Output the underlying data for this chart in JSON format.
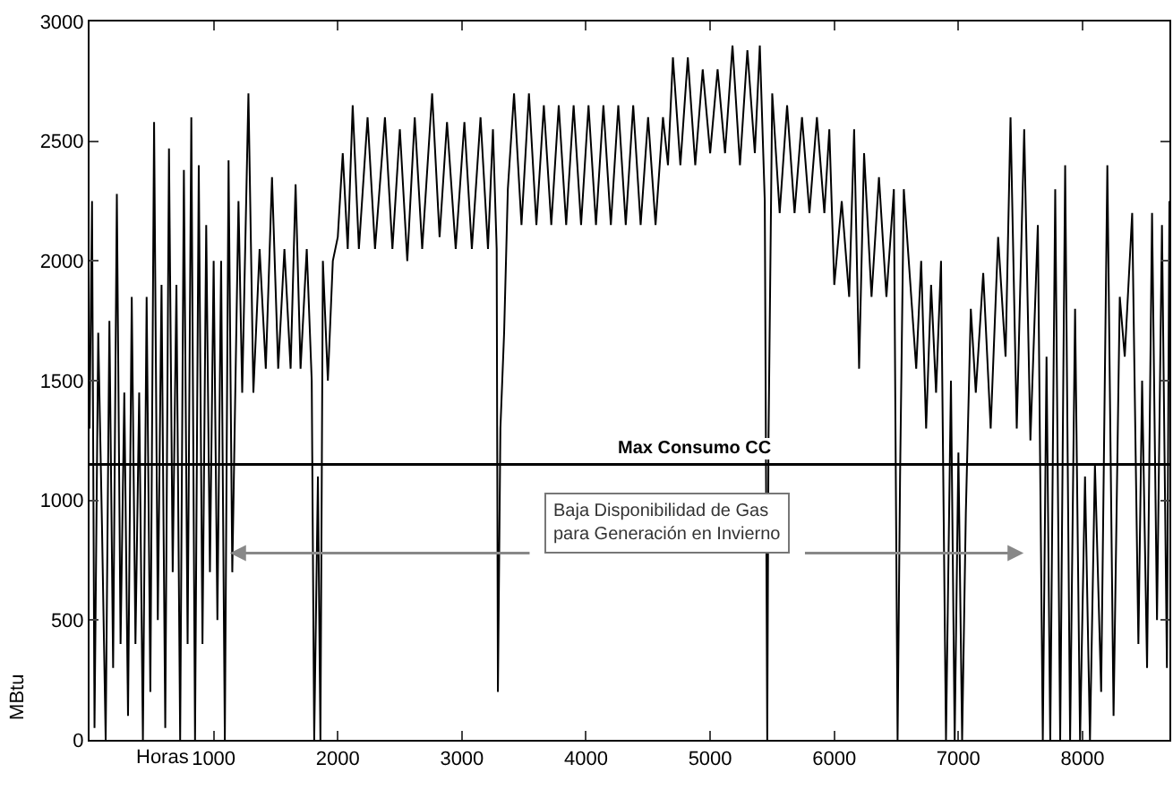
{
  "chart_data": {
    "type": "line",
    "xlabel": "Horas",
    "ylabel": "MBtu",
    "xlim": [
      0,
      8700
    ],
    "xticks": [
      1000,
      2000,
      3000,
      4000,
      5000,
      6000,
      7000,
      8000
    ],
    "ylim": [
      0,
      3000
    ],
    "yticks": [
      0,
      500,
      1000,
      1500,
      2000,
      2500,
      3000
    ],
    "marker": "none",
    "line_style": "solid",
    "ref_lines": [
      {
        "axis": "y",
        "value": 1150,
        "label": "Max Consumo CC",
        "color": "#000000"
      }
    ],
    "annotations": [
      "Baja Disponibilidad de Gas\npara Generación en Invierno"
    ],
    "series": [
      {
        "color": "#000000",
        "x": [
          0,
          20,
          40,
          70,
          100,
          130,
          160,
          190,
          220,
          250,
          280,
          310,
          340,
          370,
          400,
          430,
          460,
          490,
          520,
          550,
          580,
          610,
          640,
          670,
          700,
          730,
          760,
          790,
          820,
          850,
          880,
          910,
          940,
          970,
          1000,
          1030,
          1060,
          1090,
          1120,
          1150,
          1200,
          1230,
          1280,
          1320,
          1370,
          1420,
          1470,
          1520,
          1570,
          1620,
          1660,
          1700,
          1750,
          1790,
          1810,
          1840,
          1860,
          1880,
          1920,
          1960,
          2000,
          2040,
          2080,
          2120,
          2170,
          2240,
          2300,
          2380,
          2440,
          2500,
          2560,
          2620,
          2680,
          2760,
          2820,
          2880,
          2950,
          3020,
          3080,
          3150,
          3210,
          3250,
          3280,
          3290,
          3310,
          3340,
          3370,
          3420,
          3480,
          3540,
          3600,
          3660,
          3720,
          3780,
          3840,
          3900,
          3960,
          4020,
          4080,
          4140,
          4200,
          4260,
          4320,
          4380,
          4440,
          4500,
          4560,
          4620,
          4660,
          4700,
          4760,
          4820,
          4880,
          4940,
          5000,
          5060,
          5120,
          5180,
          5240,
          5300,
          5360,
          5400,
          5440,
          5460,
          5470,
          5500,
          5560,
          5620,
          5680,
          5740,
          5800,
          5860,
          5920,
          5960,
          6000,
          6060,
          6120,
          6160,
          6200,
          6240,
          6300,
          6360,
          6420,
          6480,
          6510,
          6530,
          6560,
          6620,
          6660,
          6700,
          6740,
          6780,
          6820,
          6860,
          6900,
          6940,
          6970,
          7000,
          7030,
          7060,
          7100,
          7140,
          7200,
          7260,
          7320,
          7380,
          7420,
          7470,
          7530,
          7580,
          7640,
          7680,
          7710,
          7740,
          7780,
          7820,
          7860,
          7900,
          7940,
          7980,
          8020,
          8060,
          8100,
          8150,
          8200,
          8250,
          8300,
          8340,
          8400,
          8450,
          8480,
          8520,
          8560,
          8600,
          8640,
          8680,
          8700
        ],
        "values": [
          1300,
          2250,
          50,
          1700,
          900,
          0,
          1750,
          300,
          2280,
          400,
          1450,
          100,
          1850,
          400,
          1450,
          0,
          1850,
          200,
          2580,
          500,
          1900,
          50,
          2470,
          700,
          1900,
          0,
          2380,
          400,
          2600,
          0,
          2400,
          400,
          2150,
          700,
          2000,
          500,
          2000,
          0,
          2420,
          700,
          2250,
          1450,
          2700,
          1450,
          2050,
          1550,
          2350,
          1550,
          2050,
          1550,
          2320,
          1550,
          2050,
          1500,
          0,
          1100,
          0,
          2000,
          1500,
          2000,
          2100,
          2450,
          2050,
          2650,
          2050,
          2600,
          2050,
          2600,
          2050,
          2550,
          2000,
          2600,
          2050,
          2700,
          2100,
          2580,
          2050,
          2580,
          2050,
          2600,
          2050,
          2550,
          2050,
          200,
          1300,
          1700,
          2300,
          2700,
          2150,
          2700,
          2150,
          2650,
          2150,
          2650,
          2150,
          2650,
          2150,
          2650,
          2150,
          2650,
          2150,
          2650,
          2150,
          2650,
          2150,
          2600,
          2150,
          2600,
          2400,
          2850,
          2400,
          2850,
          2400,
          2800,
          2450,
          2800,
          2450,
          2900,
          2400,
          2880,
          2450,
          2900,
          2250,
          0,
          1250,
          2700,
          2200,
          2650,
          2200,
          2600,
          2200,
          2600,
          2200,
          2550,
          1900,
          2250,
          1850,
          2550,
          1550,
          2450,
          1850,
          2350,
          1850,
          2300,
          0,
          1100,
          2300,
          1850,
          1550,
          2000,
          1300,
          1900,
          1450,
          2000,
          0,
          1500,
          0,
          1200,
          0,
          950,
          1800,
          1450,
          1950,
          1300,
          2100,
          1600,
          2600,
          1300,
          2550,
          1250,
          2150,
          0,
          1600,
          0,
          2300,
          0,
          2400,
          0,
          1800,
          0,
          1100,
          0,
          1150,
          200,
          2400,
          100,
          1850,
          1600,
          2200,
          400,
          1500,
          300,
          2200,
          500,
          2150,
          300,
          2250
        ]
      }
    ]
  }
}
